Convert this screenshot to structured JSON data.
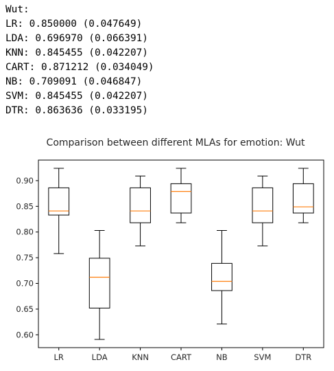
{
  "console": {
    "header": "Wut:",
    "results": [
      {
        "text": "LR: 0.850000 (0.047649)"
      },
      {
        "text": "LDA: 0.696970 (0.066391)"
      },
      {
        "text": "KNN: 0.845455 (0.042207)"
      },
      {
        "text": "CART: 0.871212 (0.034049)"
      },
      {
        "text": "NB: 0.709091 (0.046847)"
      },
      {
        "text": "SVM: 0.845455 (0.042207)"
      },
      {
        "text": "DTR: 0.863636 (0.033195)"
      }
    ]
  },
  "chart_data": {
    "type": "boxplot",
    "title": "Comparison between different MLAs for emotion: Wut",
    "categories": [
      "LR",
      "LDA",
      "KNN",
      "CART",
      "NB",
      "SVM",
      "DTR"
    ],
    "ylim": [
      0.575,
      0.94
    ],
    "yticks": [
      "0.60",
      "0.65",
      "0.70",
      "0.75",
      "0.80",
      "0.85",
      "0.90"
    ],
    "grid": false,
    "median_color": "#ff7f0e",
    "box_color": "#000000",
    "boxes": [
      {
        "label": "LR",
        "whisker_low": 0.758,
        "q1": 0.833,
        "median": 0.841,
        "q3": 0.886,
        "whisker_high": 0.924
      },
      {
        "label": "LDA",
        "whisker_low": 0.591,
        "q1": 0.652,
        "median": 0.712,
        "q3": 0.749,
        "whisker_high": 0.803
      },
      {
        "label": "KNN",
        "whisker_low": 0.773,
        "q1": 0.818,
        "median": 0.841,
        "q3": 0.886,
        "whisker_high": 0.909
      },
      {
        "label": "CART",
        "whisker_low": 0.818,
        "q1": 0.837,
        "median": 0.879,
        "q3": 0.894,
        "whisker_high": 0.924
      },
      {
        "label": "NB",
        "whisker_low": 0.621,
        "q1": 0.686,
        "median": 0.704,
        "q3": 0.739,
        "whisker_high": 0.803
      },
      {
        "label": "SVM",
        "whisker_low": 0.773,
        "q1": 0.818,
        "median": 0.841,
        "q3": 0.886,
        "whisker_high": 0.909
      },
      {
        "label": "DTR",
        "whisker_low": 0.818,
        "q1": 0.837,
        "median": 0.849,
        "q3": 0.894,
        "whisker_high": 0.924
      }
    ]
  }
}
